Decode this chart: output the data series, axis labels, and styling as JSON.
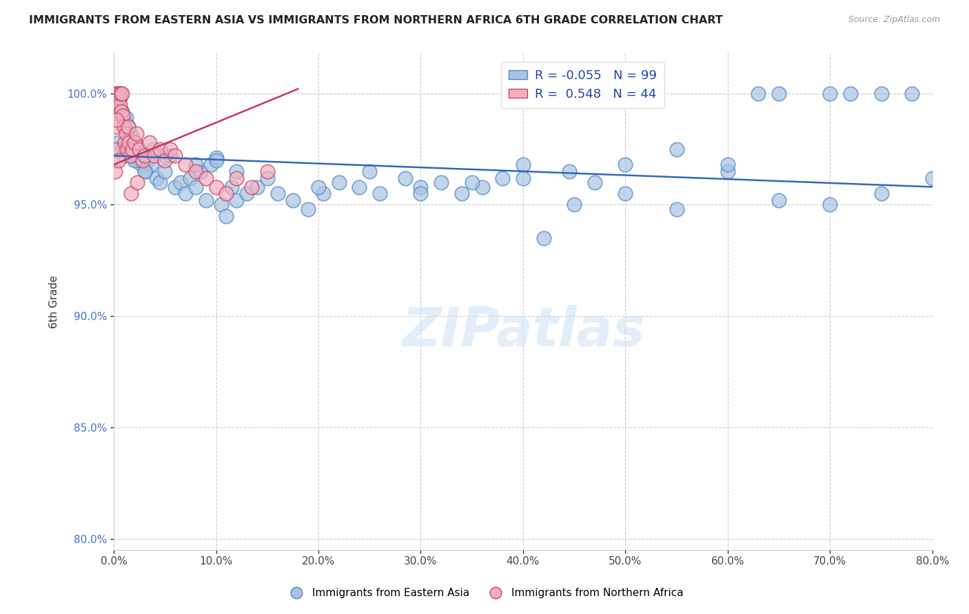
{
  "title": "IMMIGRANTS FROM EASTERN ASIA VS IMMIGRANTS FROM NORTHERN AFRICA 6TH GRADE CORRELATION CHART",
  "source": "Source: ZipAtlas.com",
  "ylabel": "6th Grade",
  "x_tick_labels": [
    "0.0%",
    "10.0%",
    "20.0%",
    "30.0%",
    "40.0%",
    "50.0%",
    "60.0%",
    "70.0%",
    "80.0%"
  ],
  "x_tick_values": [
    0.0,
    10.0,
    20.0,
    30.0,
    40.0,
    50.0,
    60.0,
    70.0,
    80.0
  ],
  "y_tick_labels": [
    "80.0%",
    "85.0%",
    "90.0%",
    "95.0%",
    "100.0%"
  ],
  "y_tick_values": [
    80.0,
    85.0,
    90.0,
    95.0,
    100.0
  ],
  "xlim": [
    0.0,
    80.0
  ],
  "ylim": [
    79.5,
    101.8
  ],
  "legend_R_blue": "-0.055",
  "legend_N_blue": "99",
  "legend_R_pink": "0.548",
  "legend_N_pink": "44",
  "blue_color": "#a8c4e0",
  "blue_edge_color": "#5588cc",
  "pink_color": "#f0b0c0",
  "pink_edge_color": "#cc4466",
  "blue_line_color": "#3366bb",
  "pink_line_color": "#cc3355",
  "watermark": "ZIPatlas",
  "blue_scatter_x": [
    0.1,
    0.2,
    0.3,
    0.4,
    0.5,
    0.6,
    0.7,
    0.8,
    0.9,
    1.0,
    1.1,
    1.2,
    1.3,
    1.4,
    1.5,
    1.6,
    1.7,
    1.8,
    1.9,
    2.0,
    2.1,
    2.2,
    2.3,
    2.5,
    2.7,
    2.9,
    3.1,
    3.3,
    3.6,
    3.9,
    4.2,
    4.5,
    5.0,
    5.5,
    6.0,
    6.5,
    7.0,
    7.5,
    8.0,
    8.5,
    9.0,
    9.5,
    10.0,
    10.5,
    11.0,
    11.5,
    12.0,
    13.0,
    14.0,
    15.0,
    16.0,
    17.5,
    19.0,
    20.5,
    22.0,
    24.0,
    26.0,
    28.5,
    30.0,
    32.0,
    34.0,
    36.0,
    38.0,
    40.0,
    42.0,
    44.5,
    47.0,
    50.0,
    55.0,
    60.0,
    63.0,
    65.0,
    70.0,
    72.0,
    75.0,
    78.0,
    20.0,
    25.0,
    30.0,
    35.0,
    40.0,
    45.0,
    50.0,
    55.0,
    60.0,
    65.0,
    70.0,
    75.0,
    80.0,
    0.3,
    0.5,
    1.0,
    1.5,
    2.0,
    3.0,
    5.0,
    8.0,
    10.0,
    12.0
  ],
  "blue_scatter_y": [
    99.5,
    99.8,
    100.0,
    100.0,
    99.5,
    99.8,
    100.0,
    99.2,
    99.0,
    98.8,
    98.5,
    98.9,
    97.8,
    98.5,
    97.5,
    98.2,
    97.2,
    98.0,
    97.5,
    97.2,
    97.8,
    97.0,
    97.5,
    97.1,
    96.8,
    97.3,
    96.5,
    97.0,
    96.8,
    97.5,
    96.2,
    96.0,
    96.5,
    97.2,
    95.8,
    96.0,
    95.5,
    96.2,
    95.8,
    96.5,
    95.2,
    96.8,
    97.1,
    95.0,
    94.5,
    95.8,
    95.2,
    95.5,
    95.8,
    96.2,
    95.5,
    95.2,
    94.8,
    95.5,
    96.0,
    95.8,
    95.5,
    96.2,
    95.8,
    96.0,
    95.5,
    95.8,
    96.2,
    96.8,
    93.5,
    96.5,
    96.0,
    96.8,
    97.5,
    96.5,
    100.0,
    100.0,
    100.0,
    100.0,
    100.0,
    100.0,
    95.8,
    96.5,
    95.5,
    96.0,
    96.2,
    95.0,
    95.5,
    94.8,
    96.8,
    95.2,
    95.0,
    95.5,
    96.2,
    97.5,
    97.8,
    97.2,
    97.5,
    97.0,
    96.5,
    97.2,
    96.8,
    97.0,
    96.5
  ],
  "pink_scatter_x": [
    0.1,
    0.15,
    0.2,
    0.3,
    0.35,
    0.4,
    0.5,
    0.55,
    0.6,
    0.7,
    0.75,
    0.8,
    0.9,
    1.0,
    1.1,
    1.2,
    1.3,
    1.4,
    1.5,
    1.6,
    1.8,
    2.0,
    2.2,
    2.5,
    2.8,
    3.0,
    3.5,
    4.0,
    4.5,
    5.0,
    5.5,
    6.0,
    7.0,
    8.0,
    9.0,
    10.0,
    11.0,
    12.0,
    13.5,
    15.0,
    0.25,
    0.45,
    1.7,
    2.3
  ],
  "pink_scatter_y": [
    96.5,
    97.5,
    98.5,
    100.0,
    99.2,
    100.0,
    100.0,
    99.8,
    99.5,
    100.0,
    99.2,
    100.0,
    99.0,
    98.5,
    97.8,
    98.2,
    97.5,
    98.5,
    97.8,
    97.2,
    97.5,
    97.8,
    98.2,
    97.5,
    97.0,
    97.2,
    97.8,
    97.2,
    97.5,
    97.0,
    97.5,
    97.2,
    96.8,
    96.5,
    96.2,
    95.8,
    95.5,
    96.2,
    95.8,
    96.5,
    98.8,
    97.0,
    95.5,
    96.0
  ],
  "blue_trend_x": [
    0.0,
    80.0
  ],
  "blue_trend_y": [
    97.2,
    95.8
  ],
  "pink_trend_x": [
    0.0,
    18.0
  ],
  "pink_trend_y": [
    96.8,
    100.2
  ]
}
